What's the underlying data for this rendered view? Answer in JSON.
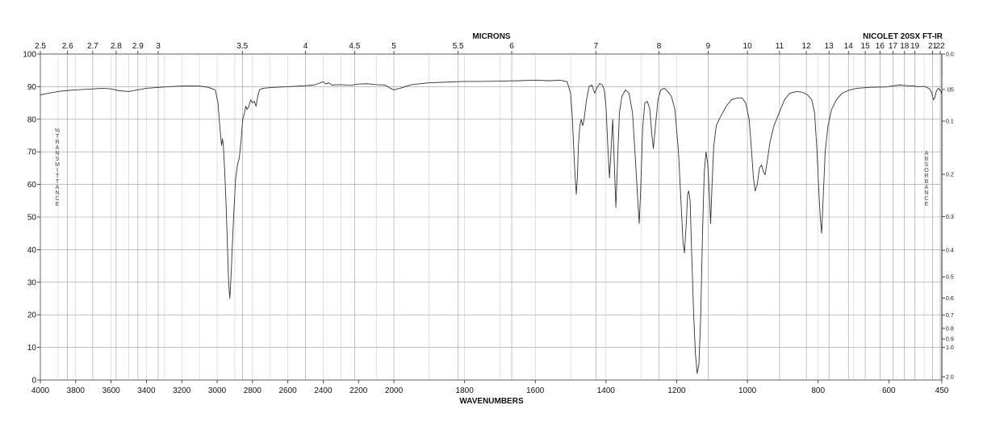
{
  "header": {
    "instrument": "NICOLET 20SX FT-IR",
    "top_axis_title": "MICRONS",
    "bottom_axis_title": "WAVENUMBERS",
    "left_axis_title": "%TRANSMITTANCE",
    "right_axis_title": "ABSORBANCE"
  },
  "chart_data": {
    "type": "line",
    "title": "",
    "xlabel": "WAVENUMBERS",
    "ylabel": "%TRANSMITTANCE",
    "x2label": "MICRONS",
    "y2label": "ABSORBANCE",
    "grid": true,
    "x_scale_note": "x axis is linear in wavenumber 4000-2000, then 2000-450 at twice the scale",
    "xlim": [
      4000,
      450
    ],
    "ylim": [
      0,
      100
    ],
    "x_ticks": [
      4000,
      3800,
      3600,
      3400,
      3200,
      3000,
      2800,
      2600,
      2400,
      2200,
      2000,
      1800,
      1600,
      1400,
      1200,
      1000,
      800,
      600,
      450
    ],
    "y_ticks": [
      0,
      10,
      20,
      30,
      40,
      50,
      60,
      70,
      80,
      90,
      100
    ],
    "micron_ticks": [
      "2.5",
      "2.6",
      "2.7",
      "2.8",
      "2.9",
      "3",
      "3.5",
      "4",
      "4.5",
      "5",
      "5.5",
      "6",
      "7",
      "8",
      "9",
      "10",
      "11",
      "12",
      "13",
      "14",
      "15",
      "16",
      "17",
      "18",
      "19",
      "21",
      "22"
    ],
    "absorbance_ticks": [
      "0.0",
      ".05",
      "0.1",
      "0.2",
      "0.3",
      "0.4",
      "0.5",
      "0.6",
      "0.7",
      "0.8",
      "0.9",
      "1.0",
      "2.0"
    ],
    "series": [
      {
        "values": [
          [
            4000,
            87.5
          ],
          [
            3950,
            88
          ],
          [
            3900,
            88.5
          ],
          [
            3850,
            88.8
          ],
          [
            3800,
            89
          ],
          [
            3700,
            89.3
          ],
          [
            3650,
            89.5
          ],
          [
            3600,
            89.3
          ],
          [
            3560,
            88.8
          ],
          [
            3500,
            88.5
          ],
          [
            3450,
            89
          ],
          [
            3400,
            89.5
          ],
          [
            3300,
            89.9
          ],
          [
            3200,
            90.2
          ],
          [
            3100,
            90.2
          ],
          [
            3050,
            89.8
          ],
          [
            3010,
            89
          ],
          [
            2995,
            85
          ],
          [
            2985,
            78
          ],
          [
            2975,
            72
          ],
          [
            2970,
            74
          ],
          [
            2965,
            72
          ],
          [
            2958,
            65
          ],
          [
            2950,
            55
          ],
          [
            2942,
            42
          ],
          [
            2935,
            30
          ],
          [
            2928,
            25
          ],
          [
            2920,
            33
          ],
          [
            2915,
            40
          ],
          [
            2905,
            52
          ],
          [
            2895,
            62
          ],
          [
            2885,
            66
          ],
          [
            2875,
            68
          ],
          [
            2865,
            73
          ],
          [
            2855,
            80
          ],
          [
            2845,
            82
          ],
          [
            2838,
            84
          ],
          [
            2830,
            83
          ],
          [
            2820,
            84
          ],
          [
            2810,
            86
          ],
          [
            2800,
            85
          ],
          [
            2790,
            85.5
          ],
          [
            2780,
            84
          ],
          [
            2770,
            87
          ],
          [
            2760,
            89
          ],
          [
            2740,
            89.5
          ],
          [
            2700,
            89.7
          ],
          [
            2600,
            90
          ],
          [
            2500,
            90.3
          ],
          [
            2450,
            90.5
          ],
          [
            2400,
            91.5
          ],
          [
            2385,
            90.8
          ],
          [
            2370,
            91.2
          ],
          [
            2350,
            90.5
          ],
          [
            2300,
            90.6
          ],
          [
            2250,
            90.4
          ],
          [
            2200,
            90.8
          ],
          [
            2150,
            90.9
          ],
          [
            2100,
            90.6
          ],
          [
            2050,
            90.5
          ],
          [
            2020,
            89.5
          ],
          [
            2000,
            89
          ],
          [
            1980,
            89.6
          ],
          [
            1950,
            90.6
          ],
          [
            1900,
            91.2
          ],
          [
            1850,
            91.4
          ],
          [
            1800,
            91.6
          ],
          [
            1750,
            91.6
          ],
          [
            1700,
            91.7
          ],
          [
            1650,
            91.8
          ],
          [
            1600,
            92
          ],
          [
            1560,
            91.8
          ],
          [
            1530,
            92
          ],
          [
            1510,
            91.5
          ],
          [
            1500,
            88
          ],
          [
            1495,
            80
          ],
          [
            1490,
            68
          ],
          [
            1487,
            62
          ],
          [
            1484,
            57
          ],
          [
            1481,
            62
          ],
          [
            1478,
            72
          ],
          [
            1474,
            78
          ],
          [
            1470,
            80
          ],
          [
            1466,
            78
          ],
          [
            1462,
            80
          ],
          [
            1455,
            86
          ],
          [
            1448,
            90
          ],
          [
            1440,
            90.5
          ],
          [
            1432,
            88
          ],
          [
            1426,
            89.5
          ],
          [
            1418,
            91
          ],
          [
            1410,
            90.5
          ],
          [
            1405,
            89
          ],
          [
            1400,
            84
          ],
          [
            1395,
            72
          ],
          [
            1390,
            62
          ],
          [
            1386,
            70
          ],
          [
            1381,
            80
          ],
          [
            1377,
            68
          ],
          [
            1372,
            53
          ],
          [
            1367,
            68
          ],
          [
            1362,
            82
          ],
          [
            1355,
            87
          ],
          [
            1345,
            89
          ],
          [
            1335,
            88
          ],
          [
            1325,
            82
          ],
          [
            1317,
            68
          ],
          [
            1310,
            55
          ],
          [
            1306,
            48
          ],
          [
            1302,
            58
          ],
          [
            1296,
            78
          ],
          [
            1290,
            85
          ],
          [
            1283,
            85.5
          ],
          [
            1276,
            83
          ],
          [
            1270,
            75
          ],
          [
            1266,
            71
          ],
          [
            1260,
            78
          ],
          [
            1253,
            86
          ],
          [
            1245,
            89
          ],
          [
            1235,
            89.5
          ],
          [
            1225,
            88.5
          ],
          [
            1215,
            87
          ],
          [
            1205,
            83
          ],
          [
            1195,
            70
          ],
          [
            1188,
            55
          ],
          [
            1182,
            42
          ],
          [
            1178,
            39
          ],
          [
            1173,
            48
          ],
          [
            1169,
            57
          ],
          [
            1166,
            58
          ],
          [
            1162,
            55
          ],
          [
            1158,
            40
          ],
          [
            1152,
            20
          ],
          [
            1147,
            8
          ],
          [
            1142,
            2
          ],
          [
            1137,
            5
          ],
          [
            1132,
            20
          ],
          [
            1127,
            45
          ],
          [
            1122,
            64
          ],
          [
            1117,
            70
          ],
          [
            1112,
            66
          ],
          [
            1108,
            58
          ],
          [
            1104,
            48
          ],
          [
            1100,
            60
          ],
          [
            1095,
            72
          ],
          [
            1088,
            78
          ],
          [
            1080,
            80
          ],
          [
            1070,
            82
          ],
          [
            1060,
            84
          ],
          [
            1045,
            86
          ],
          [
            1030,
            86.5
          ],
          [
            1015,
            86.5
          ],
          [
            1005,
            85
          ],
          [
            995,
            80
          ],
          [
            988,
            70
          ],
          [
            983,
            62
          ],
          [
            978,
            58
          ],
          [
            972,
            60
          ],
          [
            966,
            65
          ],
          [
            960,
            66
          ],
          [
            955,
            64
          ],
          [
            950,
            63
          ],
          [
            944,
            67
          ],
          [
            936,
            73
          ],
          [
            925,
            78
          ],
          [
            910,
            82
          ],
          [
            895,
            86
          ],
          [
            880,
            88
          ],
          [
            860,
            88.5
          ],
          [
            845,
            88.3
          ],
          [
            830,
            87.5
          ],
          [
            818,
            86
          ],
          [
            810,
            82
          ],
          [
            803,
            70
          ],
          [
            798,
            58
          ],
          [
            794,
            50
          ],
          [
            790,
            45
          ],
          [
            786,
            55
          ],
          [
            780,
            70
          ],
          [
            772,
            78
          ],
          [
            762,
            83
          ],
          [
            748,
            86
          ],
          [
            732,
            88
          ],
          [
            710,
            89
          ],
          [
            690,
            89.5
          ],
          [
            650,
            89.8
          ],
          [
            610,
            89.9
          ],
          [
            590,
            90.2
          ],
          [
            570,
            90.5
          ],
          [
            555,
            90.4
          ],
          [
            540,
            90.2
          ],
          [
            530,
            90.3
          ],
          [
            520,
            90
          ],
          [
            500,
            90.1
          ],
          [
            485,
            89.4
          ],
          [
            478,
            88
          ],
          [
            474,
            86
          ],
          [
            470,
            86.5
          ],
          [
            465,
            88.8
          ],
          [
            459,
            89.5
          ],
          [
            452,
            88.5
          ],
          [
            447,
            87.5
          ],
          [
            440,
            89.5
          ],
          [
            430,
            90.5
          ],
          [
            420,
            90.8
          ],
          [
            400,
            91.5
          ],
          [
            385,
            92
          ],
          [
            370,
            92.2
          ],
          [
            355,
            92.8
          ],
          [
            345,
            93.2
          ],
          [
            335,
            93
          ],
          [
            320,
            93.5
          ]
        ]
      }
    ]
  }
}
